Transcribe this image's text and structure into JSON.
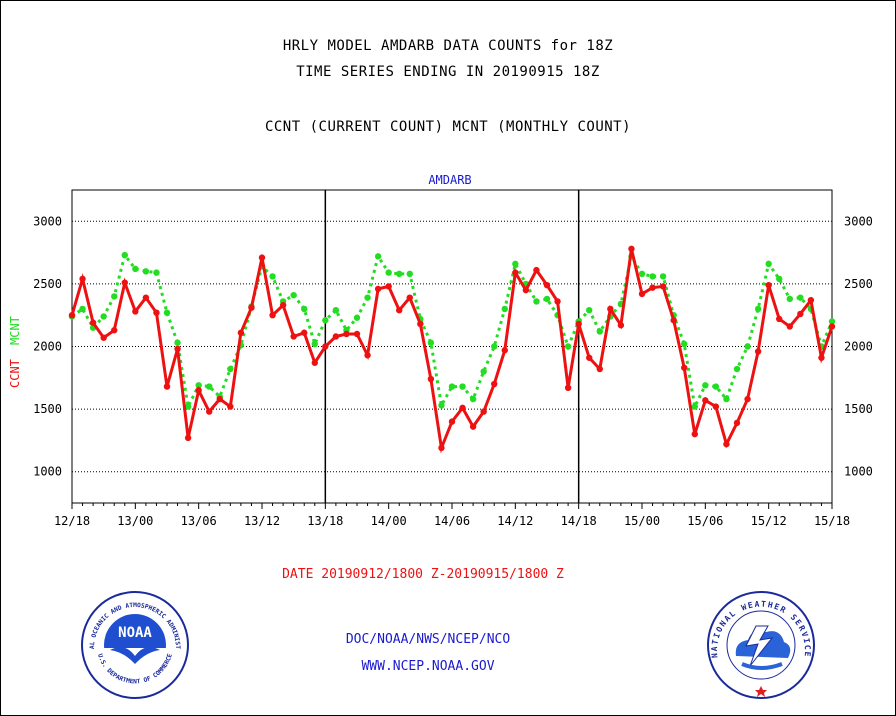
{
  "header": {
    "title_line1": "HRLY MODEL AMDARB DATA COUNTS for 18Z",
    "title_line2": "TIME SERIES ENDING IN 20190915 18Z",
    "subtitle": "CCNT (CURRENT COUNT) MCNT (MONTHLY COUNT)"
  },
  "chart_data": {
    "type": "line",
    "title": "AMDARB",
    "xlabel": "DATE 20190912/1800 Z-20190915/1800 Z",
    "ylabel_left": "CCNT",
    "ylabel_right": "MCNT",
    "x_tick_labels": [
      "12/18",
      "13/00",
      "13/06",
      "13/12",
      "13/18",
      "14/00",
      "14/06",
      "14/12",
      "14/18",
      "15/00",
      "15/06",
      "15/12",
      "15/18"
    ],
    "y_ticks": [
      1000,
      1500,
      2000,
      2500,
      3000
    ],
    "ylim": [
      750,
      3250
    ],
    "x_hours": [
      0,
      1,
      2,
      3,
      4,
      5,
      6,
      7,
      8,
      9,
      10,
      11,
      12,
      13,
      14,
      15,
      16,
      17,
      18,
      19,
      20,
      21,
      22,
      23,
      24,
      25,
      26,
      27,
      28,
      29,
      30,
      31,
      32,
      33,
      34,
      35,
      36,
      37,
      38,
      39,
      40,
      41,
      42,
      43,
      44,
      45,
      46,
      47,
      48,
      49,
      50,
      51,
      52,
      53,
      54,
      55,
      56,
      57,
      58,
      59,
      60,
      61,
      62,
      63,
      64,
      65,
      66,
      67,
      68,
      69,
      70,
      71,
      72
    ],
    "xlim": [
      0,
      72
    ],
    "grid": "horizontal dotted",
    "series": [
      {
        "name": "CCNT",
        "color": "#ee1111",
        "style": "solid",
        "values": [
          2250,
          2540,
          2190,
          2070,
          2130,
          2510,
          2280,
          2390,
          2270,
          1680,
          1980,
          1270,
          1650,
          1480,
          1580,
          1520,
          2110,
          2310,
          2710,
          2250,
          2330,
          2080,
          2110,
          1870,
          2000,
          2080,
          2100,
          2100,
          1930,
          2460,
          2480,
          2290,
          2390,
          2180,
          1740,
          1190,
          1400,
          1510,
          1360,
          1480,
          1700,
          1970,
          2590,
          2450,
          2610,
          2490,
          2360,
          1670,
          2180,
          1910,
          1820,
          2300,
          2170,
          2780,
          2420,
          2470,
          2480,
          2210,
          1830,
          1300,
          1570,
          1520,
          1220,
          1390,
          1580,
          1960,
          2490,
          2220,
          2160,
          2260,
          2370,
          1910,
          2160
        ]
      },
      {
        "name": "MCNT",
        "color": "#22dd22",
        "style": "dotted",
        "values": [
          2240,
          2300,
          2150,
          2240,
          2400,
          2730,
          2620,
          2600,
          2590,
          2270,
          2030,
          1520,
          1690,
          1680,
          1600,
          1820,
          2010,
          2320,
          2640,
          2560,
          2360,
          2410,
          2300,
          2020,
          2210,
          2290,
          2130,
          2230,
          2390,
          2720,
          2590,
          2580,
          2580,
          2220,
          2030,
          1530,
          1680,
          1680,
          1580,
          1800,
          2000,
          2300,
          2660,
          2500,
          2360,
          2380,
          2250,
          2000,
          2200,
          2290,
          2120,
          2240,
          2340,
          2720,
          2580,
          2560,
          2560,
          2250,
          2020,
          1520,
          1690,
          1680,
          1580,
          1820,
          2000,
          2300,
          2660,
          2540,
          2380,
          2390,
          2300,
          2000,
          2200
        ]
      }
    ]
  },
  "logos": {
    "noaa_badge": "NOAA",
    "noaa_ring": "NATIONAL OCEANIC AND ATMOSPHERIC ADMINISTRATION",
    "noaa_ring_bottom": "U.S. DEPARTMENT OF COMMERCE",
    "nws_ring": "NATIONAL WEATHER SERVICE"
  },
  "footer": {
    "line1": "DOC/NOAA/NWS/NCEP/NCO",
    "line2": "WWW.NCEP.NOAA.GOV"
  },
  "colors": {
    "ccnt": "#ee1111",
    "mcnt": "#22dd22",
    "title_blue": "#1a1ad0",
    "date_red": "#ee1111"
  }
}
